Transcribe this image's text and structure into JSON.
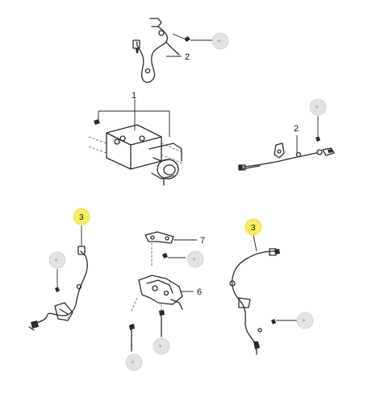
{
  "diagram": {
    "callouts": {
      "abs_module": "1",
      "front_sensor_top": "2",
      "rear_sensor_right": "2",
      "left_sensor_highlight": "3",
      "right_sensor_highlight": "3",
      "bracket_upper": "7",
      "bracket_lower": "6"
    },
    "placeholder_bubbles": "+",
    "colors": {
      "highlight": "#f6ee5e",
      "placeholder": "#e3e3e3",
      "line": "#2a2a2a"
    }
  }
}
